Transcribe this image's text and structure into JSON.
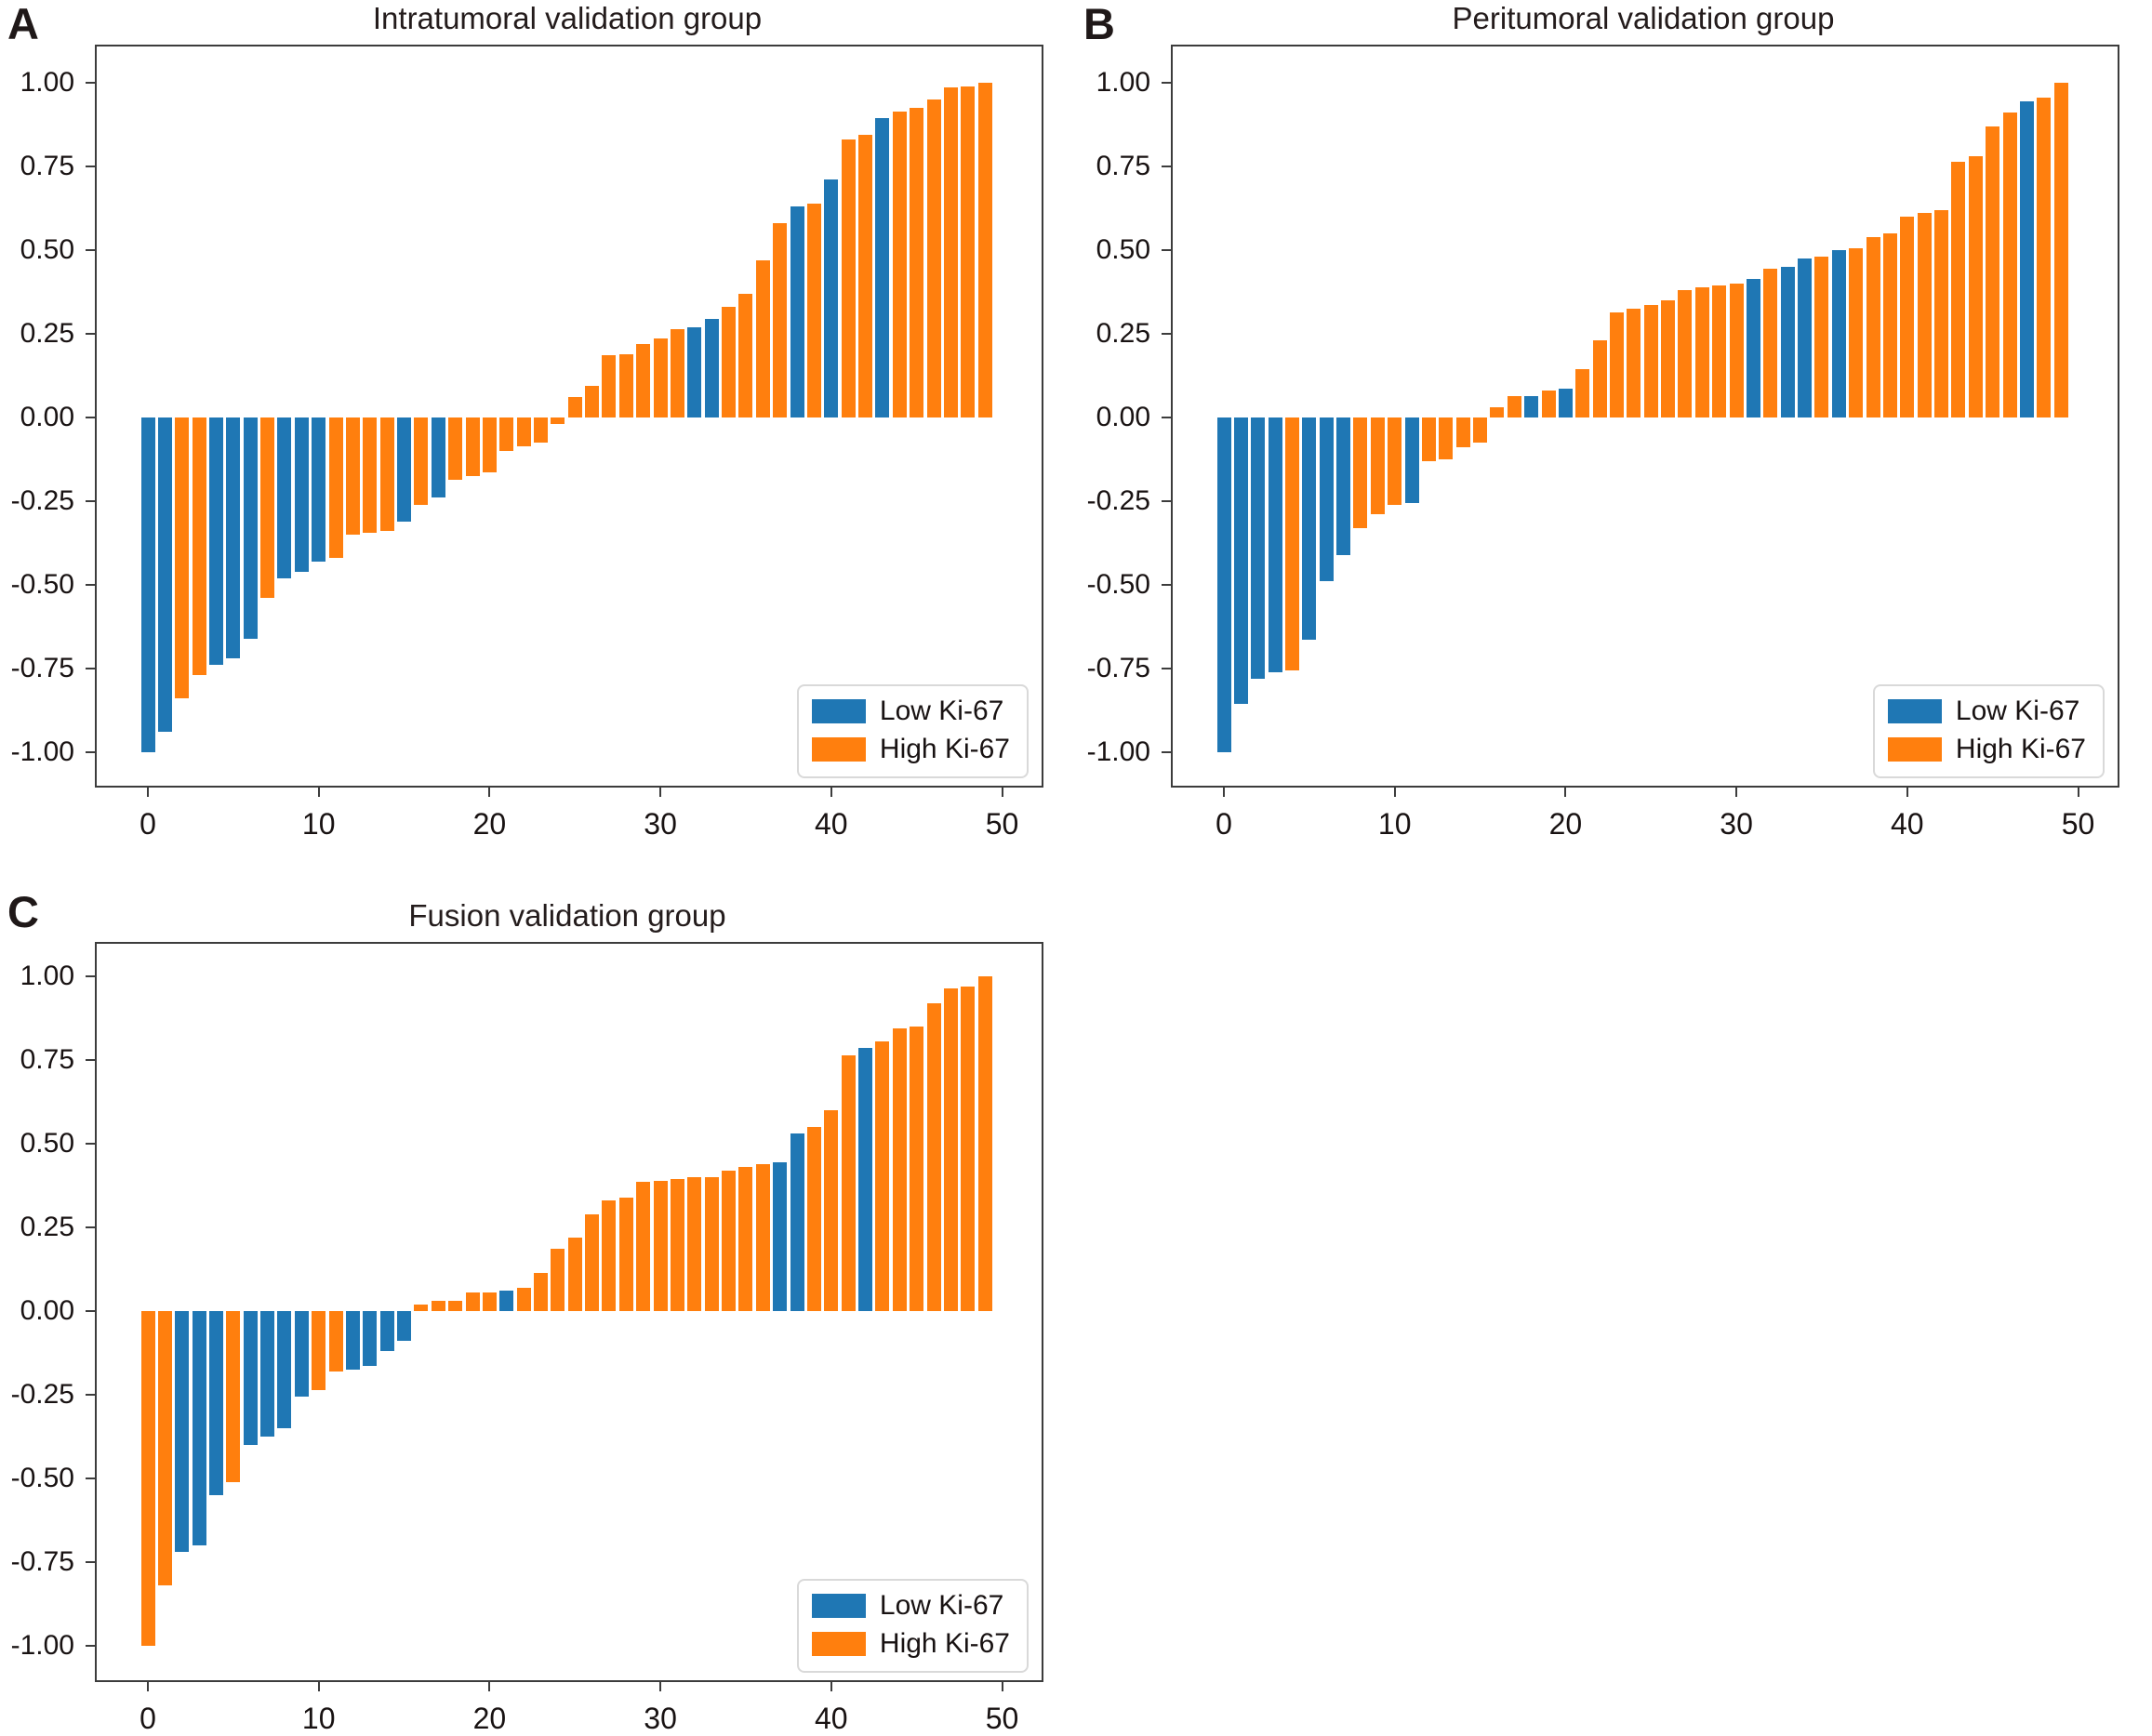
{
  "figure": {
    "background": "#ffffff",
    "description_visible": "Three waterfall bar charts of sorted values from -1.00 to 1.00, colored by Ki-67 group"
  },
  "colors": {
    "low": "#1f77b4",
    "high": "#ff7f0e",
    "axis": "#3c3c3c",
    "text": "#181212"
  },
  "legend": {
    "items": [
      {
        "label": "Low Ki-67",
        "color_key": "low"
      },
      {
        "label": "High Ki-67",
        "color_key": "high"
      }
    ],
    "position": "lower right"
  },
  "panels": [
    {
      "label": "A",
      "title": "Intratumoral validation group",
      "x_ticks": [
        0,
        10,
        20,
        30,
        40,
        50
      ],
      "y_ticks": [
        1.0,
        0.75,
        0.5,
        0.25,
        0.0,
        -0.25,
        -0.5,
        -0.75,
        -1.0
      ]
    },
    {
      "label": "B",
      "title": "Peritumoral validation group",
      "x_ticks": [
        0,
        10,
        20,
        30,
        40,
        50
      ],
      "y_ticks": [
        1.0,
        0.75,
        0.5,
        0.25,
        0.0,
        -0.25,
        -0.5,
        -0.75,
        -1.0
      ]
    },
    {
      "label": "C",
      "title": "Fusion validation group",
      "x_ticks": [
        0,
        10,
        20,
        30,
        40,
        50
      ],
      "y_ticks": [
        1.0,
        0.75,
        0.5,
        0.25,
        0.0,
        -0.25,
        -0.5,
        -0.75,
        -1.0
      ]
    }
  ],
  "chart_data": [
    {
      "type": "bar",
      "title": "Intratumoral validation group",
      "xlabel": "",
      "ylabel": "",
      "x_indices": "0-49, one bar per case, values sorted ascending",
      "xlim": [
        -3,
        52
      ],
      "ylim": [
        -1.1,
        1.1
      ],
      "grid": false,
      "legend_position": "lower right",
      "legend": [
        "Low Ki-67",
        "High Ki-67"
      ],
      "series": [
        {
          "name": "sorted case values",
          "values": [
            -1.0,
            -0.94,
            -0.84,
            -0.77,
            -0.74,
            -0.72,
            -0.66,
            -0.54,
            -0.48,
            -0.46,
            -0.43,
            -0.42,
            -0.35,
            -0.345,
            -0.34,
            -0.31,
            -0.26,
            -0.24,
            -0.185,
            -0.175,
            -0.165,
            -0.1,
            -0.085,
            -0.075,
            -0.02,
            0.06,
            0.095,
            0.185,
            0.19,
            0.22,
            0.235,
            0.265,
            0.27,
            0.295,
            0.33,
            0.37,
            0.47,
            0.58,
            0.63,
            0.64,
            0.71,
            0.83,
            0.845,
            0.895,
            0.915,
            0.925,
            0.95,
            0.985,
            0.99,
            1.0
          ],
          "groups": [
            "low",
            "low",
            "high",
            "high",
            "low",
            "low",
            "low",
            "high",
            "low",
            "low",
            "low",
            "high",
            "high",
            "high",
            "high",
            "low",
            "high",
            "low",
            "high",
            "high",
            "high",
            "high",
            "high",
            "high",
            "high",
            "high",
            "high",
            "high",
            "high",
            "high",
            "high",
            "high",
            "low",
            "low",
            "high",
            "high",
            "high",
            "high",
            "low",
            "high",
            "low",
            "high",
            "high",
            "low",
            "high",
            "high",
            "high",
            "high",
            "high",
            "high"
          ]
        }
      ]
    },
    {
      "type": "bar",
      "title": "Peritumoral validation group",
      "xlabel": "",
      "ylabel": "",
      "x_indices": "0-49, one bar per case, values sorted ascending",
      "xlim": [
        -3,
        52
      ],
      "ylim": [
        -1.1,
        1.1
      ],
      "grid": false,
      "legend_position": "lower right",
      "legend": [
        "Low Ki-67",
        "High Ki-67"
      ],
      "series": [
        {
          "name": "sorted case values",
          "values": [
            -1.0,
            -0.855,
            -0.78,
            -0.76,
            -0.755,
            -0.665,
            -0.49,
            -0.41,
            -0.33,
            -0.29,
            -0.26,
            -0.255,
            -0.13,
            -0.125,
            -0.09,
            -0.075,
            0.03,
            0.065,
            0.065,
            0.08,
            0.085,
            0.145,
            0.23,
            0.315,
            0.325,
            0.335,
            0.35,
            0.38,
            0.39,
            0.395,
            0.4,
            0.415,
            0.445,
            0.45,
            0.475,
            0.48,
            0.5,
            0.505,
            0.54,
            0.55,
            0.6,
            0.61,
            0.62,
            0.765,
            0.78,
            0.87,
            0.91,
            0.945,
            0.955,
            1.0
          ],
          "groups": [
            "low",
            "low",
            "low",
            "low",
            "high",
            "low",
            "low",
            "low",
            "high",
            "high",
            "high",
            "low",
            "high",
            "high",
            "high",
            "high",
            "high",
            "high",
            "low",
            "high",
            "low",
            "high",
            "high",
            "high",
            "high",
            "high",
            "high",
            "high",
            "high",
            "high",
            "high",
            "low",
            "high",
            "low",
            "low",
            "high",
            "low",
            "high",
            "high",
            "high",
            "high",
            "high",
            "high",
            "high",
            "high",
            "high",
            "high",
            "low",
            "high",
            "high"
          ]
        }
      ]
    },
    {
      "type": "bar",
      "title": "Fusion validation group",
      "xlabel": "",
      "ylabel": "",
      "x_indices": "0-49, one bar per case, values sorted ascending",
      "xlim": [
        -3,
        52
      ],
      "ylim": [
        -1.1,
        1.1
      ],
      "grid": false,
      "legend_position": "lower right",
      "legend": [
        "Low Ki-67",
        "High Ki-67"
      ],
      "series": [
        {
          "name": "sorted case values",
          "values": [
            -1.0,
            -0.82,
            -0.72,
            -0.7,
            -0.55,
            -0.51,
            -0.4,
            -0.375,
            -0.35,
            -0.255,
            -0.235,
            -0.18,
            -0.175,
            -0.165,
            -0.12,
            -0.09,
            0.02,
            0.03,
            0.03,
            0.055,
            0.055,
            0.06,
            0.07,
            0.115,
            0.185,
            0.22,
            0.29,
            0.33,
            0.34,
            0.385,
            0.39,
            0.395,
            0.4,
            0.4,
            0.42,
            0.43,
            0.44,
            0.445,
            0.53,
            0.55,
            0.6,
            0.765,
            0.785,
            0.805,
            0.845,
            0.85,
            0.92,
            0.965,
            0.97,
            1.0
          ],
          "groups": [
            "high",
            "high",
            "low",
            "low",
            "low",
            "high",
            "low",
            "low",
            "low",
            "low",
            "high",
            "high",
            "low",
            "low",
            "low",
            "low",
            "high",
            "high",
            "high",
            "high",
            "high",
            "low",
            "high",
            "high",
            "high",
            "high",
            "high",
            "high",
            "high",
            "high",
            "high",
            "high",
            "high",
            "high",
            "high",
            "high",
            "high",
            "low",
            "low",
            "high",
            "high",
            "high",
            "low",
            "high",
            "high",
            "high",
            "high",
            "high",
            "high",
            "high"
          ]
        }
      ]
    }
  ]
}
